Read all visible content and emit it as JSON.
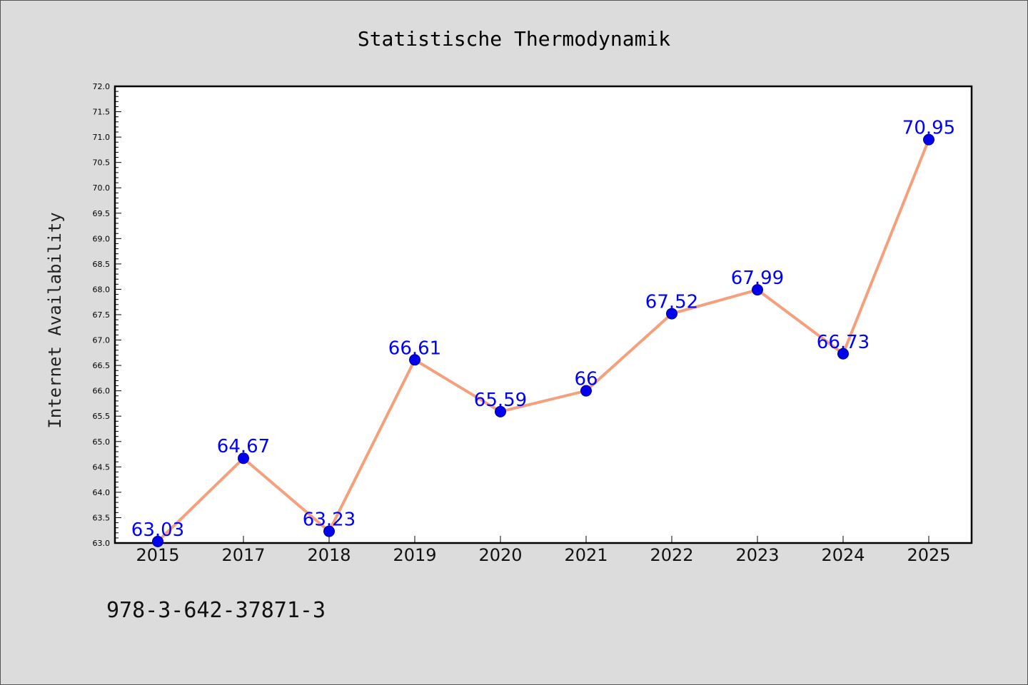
{
  "chart_data": {
    "type": "line",
    "title": "Statistische Thermodynamik",
    "xlabel": "",
    "ylabel": "Internet Availability",
    "categories": [
      "2015",
      "2017",
      "2018",
      "2019",
      "2020",
      "2021",
      "2022",
      "2023",
      "2024",
      "2025"
    ],
    "series": [
      {
        "values": [
          63.03,
          64.67,
          63.23,
          66.61,
          65.59,
          66,
          67.52,
          67.99,
          66.73,
          70.95
        ],
        "labels": [
          "63.03",
          "64.67",
          "63.23",
          "66.61",
          "65.59",
          "66",
          "67.52",
          "67.99",
          "66.73",
          "70.95"
        ],
        "line_color": "#f4a07c",
        "marker_color": "#0000ee"
      }
    ],
    "ylim": [
      63.0,
      72.0
    ],
    "yticks": [
      "63.0",
      "63.5",
      "64.0",
      "64.5",
      "65.0",
      "65.5",
      "66.0",
      "66.5",
      "67.0",
      "67.5",
      "68.0",
      "68.5",
      "69.0",
      "69.5",
      "70.0",
      "70.5",
      "71.0",
      "71.5",
      "72.0"
    ],
    "grid": false,
    "legend": "none",
    "label_color": "#0000ff"
  },
  "footer": {
    "isbn": "978-3-642-37871-3"
  }
}
